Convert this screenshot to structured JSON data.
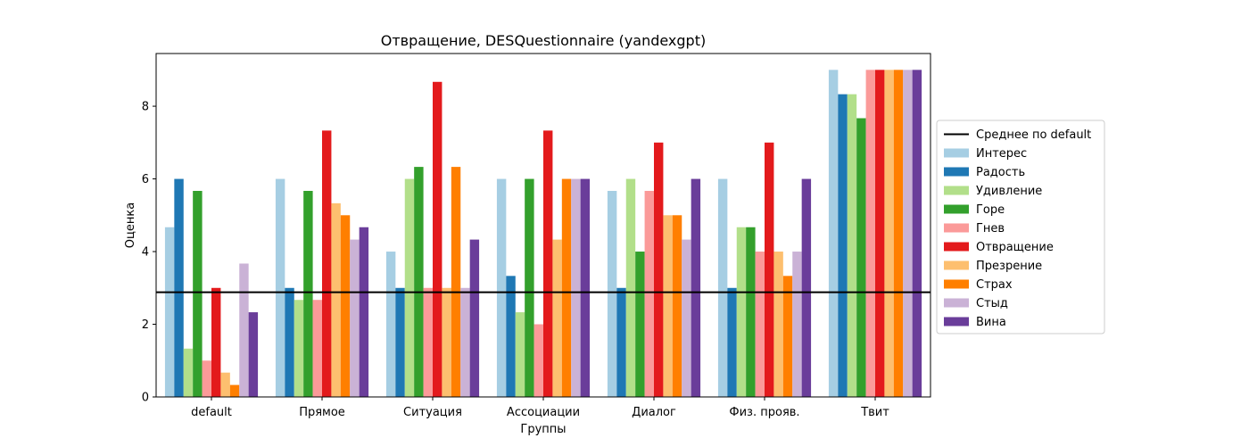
{
  "chart_data": {
    "type": "bar",
    "title": "Отвращение, DESQuestionnaire (yandexgpt)",
    "xlabel": "Группы",
    "ylabel": "Оценка",
    "ylim": [
      0,
      9.45
    ],
    "yticks": [
      0,
      2,
      4,
      6,
      8
    ],
    "grid": false,
    "legend_position": "center-right, outside plot",
    "categories": [
      "default",
      "Прямое",
      "Ситуация",
      "Ассоциации",
      "Диалог",
      "Физ. прояв.",
      "Твит"
    ],
    "reference_line": {
      "name": "Среднее по default",
      "value": 2.88,
      "color": "#000000"
    },
    "series": [
      {
        "name": "Интерес",
        "color": "#a6cee3",
        "values": [
          4.67,
          6.0,
          4.0,
          6.0,
          5.67,
          6.0,
          9.0
        ]
      },
      {
        "name": "Радость",
        "color": "#1f78b4",
        "values": [
          6.0,
          3.0,
          3.0,
          3.33,
          3.0,
          3.0,
          8.33
        ]
      },
      {
        "name": "Удивление",
        "color": "#b2df8a",
        "values": [
          1.33,
          2.67,
          6.0,
          2.33,
          6.0,
          4.67,
          8.33
        ]
      },
      {
        "name": "Горе",
        "color": "#33a02c",
        "values": [
          5.67,
          5.67,
          6.33,
          6.0,
          4.0,
          4.67,
          7.67
        ]
      },
      {
        "name": "Гнев",
        "color": "#fb9a99",
        "values": [
          1.0,
          2.67,
          3.0,
          2.0,
          5.67,
          4.0,
          9.0
        ]
      },
      {
        "name": "Отвращение",
        "color": "#e31a1c",
        "values": [
          3.0,
          7.33,
          8.67,
          7.33,
          7.0,
          7.0,
          9.0
        ]
      },
      {
        "name": "Презрение",
        "color": "#fdbf6f",
        "values": [
          0.67,
          5.33,
          3.0,
          4.33,
          5.0,
          4.0,
          9.0
        ]
      },
      {
        "name": "Страх",
        "color": "#ff7f00",
        "values": [
          0.33,
          5.0,
          6.33,
          6.0,
          5.0,
          3.33,
          9.0
        ]
      },
      {
        "name": "Стыд",
        "color": "#cab2d6",
        "values": [
          3.67,
          4.33,
          3.0,
          6.0,
          4.33,
          4.0,
          9.0
        ]
      },
      {
        "name": "Вина",
        "color": "#6a3d9a",
        "values": [
          2.33,
          4.67,
          4.33,
          6.0,
          6.0,
          6.0,
          9.0
        ]
      }
    ]
  }
}
